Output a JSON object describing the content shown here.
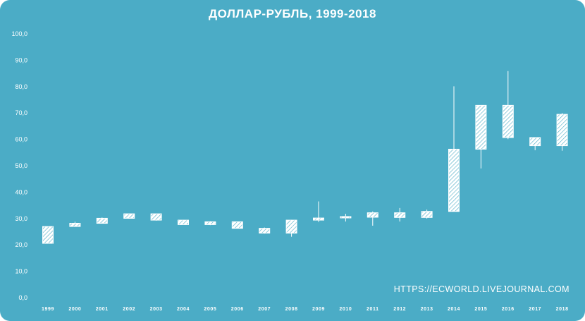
{
  "chart_data": {
    "type": "candlestick",
    "title": "ДОЛЛАР-РУБЛЬ,  1999-2018",
    "watermark": "HTTPS://ECWORLD.LIVEJOURNAL.COM",
    "xlabel": "",
    "ylabel": "",
    "ylim": [
      0,
      100
    ],
    "y_ticks": [
      "0,0",
      "10,0",
      "20,0",
      "30,0",
      "40,0",
      "50,0",
      "60,0",
      "70,0",
      "80,0",
      "90,0",
      "100,0"
    ],
    "grid": false,
    "legend": "none",
    "colors": {
      "background": "#4bacc6",
      "candle_fill": "#ffffff",
      "candle_hatch": "#4bacc6",
      "text": "#ffffff"
    },
    "categories": [
      "1999",
      "2000",
      "2001",
      "2002",
      "2003",
      "2004",
      "2005",
      "2006",
      "2007",
      "2008",
      "2009",
      "2010",
      "2011",
      "2012",
      "2013",
      "2014",
      "2015",
      "2016",
      "2017",
      "2018"
    ],
    "candles": [
      {
        "year": "1999",
        "open": 20.6,
        "close": 27.0,
        "high": 27.0,
        "low": 20.6
      },
      {
        "year": "2000",
        "open": 27.0,
        "close": 28.2,
        "high": 28.8,
        "low": 26.9
      },
      {
        "year": "2001",
        "open": 28.2,
        "close": 30.1,
        "high": 30.4,
        "low": 28.1
      },
      {
        "year": "2002",
        "open": 30.1,
        "close": 31.8,
        "high": 31.9,
        "low": 30.1
      },
      {
        "year": "2003",
        "open": 31.8,
        "close": 29.4,
        "high": 31.9,
        "low": 29.2
      },
      {
        "year": "2004",
        "open": 29.4,
        "close": 27.7,
        "high": 29.5,
        "low": 27.7
      },
      {
        "year": "2005",
        "open": 27.7,
        "close": 28.8,
        "high": 29.0,
        "low": 27.5
      },
      {
        "year": "2006",
        "open": 28.8,
        "close": 26.3,
        "high": 28.9,
        "low": 26.2
      },
      {
        "year": "2007",
        "open": 26.3,
        "close": 24.5,
        "high": 26.6,
        "low": 24.3
      },
      {
        "year": "2008",
        "open": 24.5,
        "close": 29.4,
        "high": 29.5,
        "low": 23.1
      },
      {
        "year": "2009",
        "open": 29.4,
        "close": 30.2,
        "high": 36.5,
        "low": 28.7
      },
      {
        "year": "2010",
        "open": 30.2,
        "close": 30.5,
        "high": 31.8,
        "low": 28.9
      },
      {
        "year": "2011",
        "open": 30.5,
        "close": 32.2,
        "high": 32.7,
        "low": 27.3
      },
      {
        "year": "2012",
        "open": 32.2,
        "close": 30.4,
        "high": 34.0,
        "low": 28.9
      },
      {
        "year": "2013",
        "open": 30.4,
        "close": 32.7,
        "high": 33.4,
        "low": 30.0
      },
      {
        "year": "2014",
        "open": 32.7,
        "close": 56.3,
        "high": 80.1,
        "low": 32.7
      },
      {
        "year": "2015",
        "open": 56.3,
        "close": 72.9,
        "high": 72.9,
        "low": 49.0
      },
      {
        "year": "2016",
        "open": 72.9,
        "close": 60.7,
        "high": 85.9,
        "low": 60.1
      },
      {
        "year": "2017",
        "open": 60.7,
        "close": 57.6,
        "high": 60.7,
        "low": 55.9
      },
      {
        "year": "2018",
        "open": 57.6,
        "close": 69.5,
        "high": 70.0,
        "low": 55.7
      }
    ]
  }
}
